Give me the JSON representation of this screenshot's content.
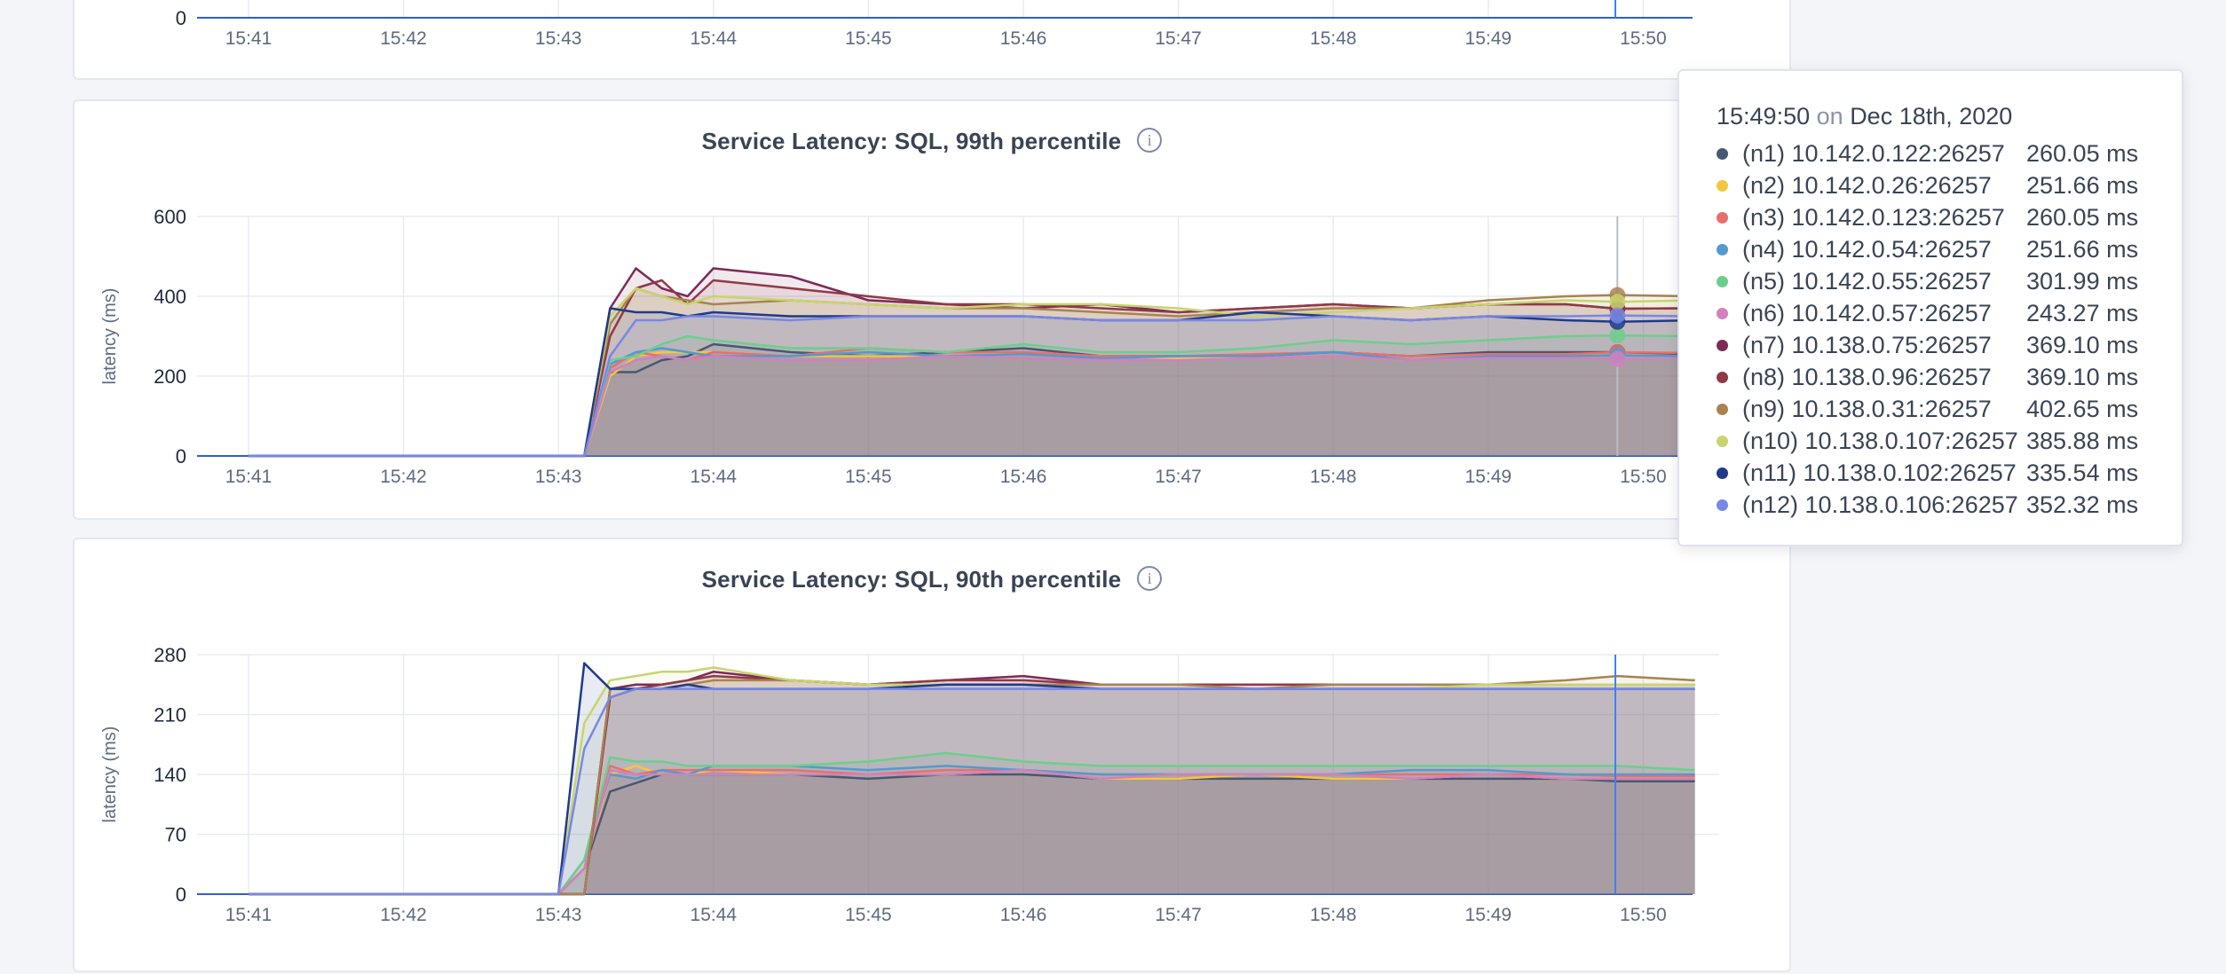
{
  "x_ticks": [
    "15:41",
    "15:42",
    "15:43",
    "15:44",
    "15:45",
    "15:46",
    "15:47",
    "15:48",
    "15:49",
    "15:50"
  ],
  "colors": {
    "n1": "#475872",
    "n2": "#f3c73d",
    "n3": "#e96f6c",
    "n4": "#5499d0",
    "n5": "#6bcf8b",
    "n6": "#d47fbe",
    "n7": "#7d2a57",
    "n8": "#8f3a46",
    "n9": "#a88350",
    "n10": "#c8d46e",
    "n11": "#1f3a8b",
    "n12": "#7788e6"
  },
  "top_panel": {
    "y_tick": "0"
  },
  "panel_p99": {
    "title": "Service Latency: SQL, 99th percentile",
    "ylabel": "latency (ms)",
    "y_ticks": [
      "0",
      "200",
      "400",
      "600"
    ]
  },
  "panel_p90": {
    "title": "Service Latency: SQL, 90th percentile",
    "ylabel": "latency (ms)",
    "y_ticks": [
      "0",
      "70",
      "140",
      "210",
      "280"
    ]
  },
  "tooltip": {
    "time": "15:49:50",
    "on": "on",
    "date": "Dec 18th, 2020",
    "rows": [
      {
        "name": "(n1) 10.142.0.122:26257",
        "value": "260.05 ms",
        "color_key": "n1"
      },
      {
        "name": "(n2) 10.142.0.26:26257",
        "value": "251.66 ms",
        "color_key": "n2"
      },
      {
        "name": "(n3) 10.142.0.123:26257",
        "value": "260.05 ms",
        "color_key": "n3"
      },
      {
        "name": "(n4) 10.142.0.54:26257",
        "value": "251.66 ms",
        "color_key": "n4"
      },
      {
        "name": "(n5) 10.142.0.55:26257",
        "value": "301.99 ms",
        "color_key": "n5"
      },
      {
        "name": "(n6) 10.142.0.57:26257",
        "value": "243.27 ms",
        "color_key": "n6"
      },
      {
        "name": "(n7) 10.138.0.75:26257",
        "value": "369.10 ms",
        "color_key": "n7"
      },
      {
        "name": "(n8) 10.138.0.96:26257",
        "value": "369.10 ms",
        "color_key": "n8"
      },
      {
        "name": "(n9) 10.138.0.31:26257",
        "value": "402.65 ms",
        "color_key": "n9"
      },
      {
        "name": "(n10) 10.138.0.107:26257",
        "value": "385.88 ms",
        "color_key": "n10"
      },
      {
        "name": "(n11) 10.138.0.102:26257",
        "value": "335.54 ms",
        "color_key": "n11"
      },
      {
        "name": "(n12) 10.138.0.106:26257",
        "value": "352.32 ms",
        "color_key": "n12"
      }
    ]
  },
  "chart_data": [
    {
      "type": "line",
      "title": "Service Latency: SQL, 99th percentile",
      "xlabel": "",
      "ylabel": "latency (ms)",
      "ylim": [
        0,
        600
      ],
      "x": [
        "15:41",
        "15:42",
        "15:43",
        "15:43:10",
        "15:43:20",
        "15:43:30",
        "15:43:40",
        "15:43:50",
        "15:44",
        "15:44:30",
        "15:45",
        "15:45:30",
        "15:46",
        "15:46:30",
        "15:47",
        "15:47:30",
        "15:48",
        "15:48:30",
        "15:49",
        "15:49:30",
        "15:49:50",
        "15:50:20"
      ],
      "series": [
        {
          "name": "(n1) 10.142.0.122:26257",
          "color_key": "n1",
          "values": [
            0,
            0,
            0,
            0,
            210,
            210,
            240,
            250,
            280,
            260,
            250,
            260,
            270,
            250,
            250,
            250,
            260,
            250,
            260,
            260,
            260,
            255
          ]
        },
        {
          "name": "(n2) 10.142.0.26:26257",
          "color_key": "n2",
          "values": [
            0,
            0,
            0,
            0,
            200,
            250,
            260,
            260,
            260,
            250,
            250,
            250,
            255,
            250,
            245,
            245,
            250,
            240,
            250,
            250,
            252,
            250
          ]
        },
        {
          "name": "(n3) 10.142.0.123:26257",
          "color_key": "n3",
          "values": [
            0,
            0,
            0,
            0,
            220,
            260,
            250,
            240,
            260,
            250,
            270,
            260,
            260,
            250,
            250,
            255,
            260,
            250,
            255,
            255,
            260,
            258
          ]
        },
        {
          "name": "(n4) 10.142.0.54:26257",
          "color_key": "n4",
          "values": [
            0,
            0,
            0,
            0,
            230,
            260,
            270,
            260,
            250,
            250,
            260,
            250,
            255,
            245,
            250,
            250,
            260,
            240,
            250,
            250,
            252,
            250
          ]
        },
        {
          "name": "(n5) 10.142.0.55:26257",
          "color_key": "n5",
          "values": [
            0,
            0,
            0,
            0,
            240,
            250,
            280,
            300,
            290,
            270,
            270,
            260,
            280,
            260,
            260,
            270,
            290,
            280,
            290,
            300,
            302,
            300
          ]
        },
        {
          "name": "(n6) 10.142.0.57:26257",
          "color_key": "n6",
          "values": [
            0,
            0,
            0,
            0,
            210,
            240,
            250,
            240,
            250,
            240,
            240,
            250,
            245,
            240,
            240,
            245,
            250,
            240,
            245,
            245,
            243,
            245
          ]
        },
        {
          "name": "(n7) 10.138.0.75:26257",
          "color_key": "n7",
          "values": [
            0,
            0,
            0,
            0,
            370,
            470,
            420,
            400,
            470,
            450,
            390,
            380,
            370,
            380,
            360,
            370,
            380,
            370,
            380,
            380,
            369,
            370
          ]
        },
        {
          "name": "(n8) 10.138.0.96:26257",
          "color_key": "n8",
          "values": [
            0,
            0,
            0,
            0,
            300,
            420,
            440,
            380,
            440,
            420,
            400,
            380,
            380,
            370,
            360,
            370,
            380,
            370,
            380,
            380,
            369,
            370
          ]
        },
        {
          "name": "(n9) 10.138.0.31:26257",
          "color_key": "n9",
          "values": [
            0,
            0,
            0,
            0,
            330,
            420,
            400,
            390,
            380,
            390,
            380,
            370,
            370,
            360,
            350,
            360,
            370,
            370,
            390,
            400,
            403,
            400
          ]
        },
        {
          "name": "(n10) 10.138.0.107:26257",
          "color_key": "n10",
          "values": [
            0,
            0,
            0,
            0,
            350,
            420,
            400,
            380,
            400,
            390,
            380,
            370,
            380,
            380,
            370,
            350,
            360,
            370,
            380,
            390,
            386,
            390
          ]
        },
        {
          "name": "(n11) 10.138.0.102:26257",
          "color_key": "n11",
          "values": [
            0,
            0,
            0,
            0,
            370,
            360,
            360,
            350,
            360,
            350,
            350,
            350,
            350,
            340,
            340,
            360,
            350,
            340,
            350,
            340,
            336,
            340
          ]
        },
        {
          "name": "(n12) 10.138.0.106:26257",
          "color_key": "n12",
          "values": [
            0,
            0,
            0,
            0,
            250,
            340,
            340,
            350,
            350,
            340,
            350,
            350,
            350,
            340,
            340,
            340,
            350,
            340,
            350,
            350,
            352,
            350
          ]
        }
      ]
    },
    {
      "type": "line",
      "title": "Service Latency: SQL, 90th percentile",
      "xlabel": "",
      "ylabel": "latency (ms)",
      "ylim": [
        0,
        280
      ],
      "x": [
        "15:41",
        "15:42",
        "15:43",
        "15:43:10",
        "15:43:20",
        "15:43:30",
        "15:43:40",
        "15:43:50",
        "15:44",
        "15:44:30",
        "15:45",
        "15:45:30",
        "15:46",
        "15:46:30",
        "15:47",
        "15:47:30",
        "15:48",
        "15:48:30",
        "15:49",
        "15:49:30",
        "15:49:50",
        "15:50:20"
      ],
      "series": [
        {
          "name": "(n1) 10.142.0.122:26257",
          "color_key": "n1",
          "values": [
            0,
            0,
            0,
            30,
            120,
            130,
            140,
            140,
            140,
            140,
            135,
            140,
            140,
            135,
            135,
            135,
            135,
            135,
            135,
            135,
            132,
            132
          ]
        },
        {
          "name": "(n2) 10.142.0.26:26257",
          "color_key": "n2",
          "values": [
            0,
            0,
            0,
            30,
            140,
            150,
            140,
            140,
            145,
            140,
            140,
            140,
            145,
            135,
            135,
            140,
            135,
            135,
            140,
            135,
            135,
            135
          ]
        },
        {
          "name": "(n3) 10.142.0.123:26257",
          "color_key": "n3",
          "values": [
            0,
            0,
            0,
            30,
            150,
            140,
            145,
            145,
            145,
            145,
            140,
            145,
            145,
            140,
            140,
            140,
            140,
            140,
            140,
            140,
            138,
            138
          ]
        },
        {
          "name": "(n4) 10.142.0.54:26257",
          "color_key": "n4",
          "values": [
            0,
            0,
            0,
            40,
            140,
            135,
            145,
            140,
            150,
            150,
            145,
            150,
            145,
            140,
            140,
            140,
            140,
            145,
            145,
            140,
            140,
            140
          ]
        },
        {
          "name": "(n5) 10.142.0.55:26257",
          "color_key": "n5",
          "values": [
            0,
            0,
            0,
            40,
            160,
            155,
            155,
            150,
            150,
            150,
            155,
            165,
            155,
            150,
            150,
            150,
            150,
            150,
            150,
            150,
            150,
            145
          ]
        },
        {
          "name": "(n6) 10.142.0.57:26257",
          "color_key": "n6",
          "values": [
            0,
            0,
            0,
            30,
            145,
            140,
            140,
            140,
            140,
            140,
            140,
            140,
            145,
            135,
            140,
            140,
            140,
            135,
            140,
            135,
            135,
            135
          ]
        },
        {
          "name": "(n7) 10.138.0.75:26257",
          "color_key": "n7",
          "values": [
            0,
            0,
            0,
            0,
            240,
            245,
            245,
            250,
            260,
            250,
            245,
            250,
            255,
            245,
            245,
            245,
            245,
            245,
            245,
            245,
            245,
            245
          ]
        },
        {
          "name": "(n8) 10.138.0.96:26257",
          "color_key": "n8",
          "values": [
            0,
            0,
            0,
            0,
            230,
            240,
            245,
            250,
            255,
            250,
            245,
            250,
            250,
            245,
            245,
            245,
            245,
            245,
            245,
            245,
            245,
            245
          ]
        },
        {
          "name": "(n9) 10.138.0.31:26257",
          "color_key": "n9",
          "values": [
            0,
            0,
            0,
            0,
            240,
            240,
            240,
            245,
            250,
            250,
            245,
            245,
            245,
            245,
            245,
            240,
            245,
            245,
            245,
            250,
            255,
            250
          ]
        },
        {
          "name": "(n10) 10.138.0.107:26257",
          "color_key": "n10",
          "values": [
            0,
            0,
            0,
            200,
            250,
            255,
            260,
            260,
            265,
            250,
            245,
            245,
            245,
            240,
            240,
            240,
            240,
            240,
            245,
            245,
            245,
            245
          ]
        },
        {
          "name": "(n11) 10.138.0.102:26257",
          "color_key": "n11",
          "values": [
            0,
            0,
            0,
            270,
            240,
            240,
            240,
            245,
            240,
            240,
            240,
            245,
            245,
            240,
            240,
            240,
            240,
            240,
            240,
            240,
            240,
            240
          ]
        },
        {
          "name": "(n12) 10.138.0.106:26257",
          "color_key": "n12",
          "values": [
            0,
            0,
            0,
            170,
            230,
            240,
            240,
            240,
            240,
            240,
            240,
            240,
            240,
            240,
            240,
            240,
            240,
            240,
            240,
            240,
            240,
            240
          ]
        }
      ]
    }
  ]
}
